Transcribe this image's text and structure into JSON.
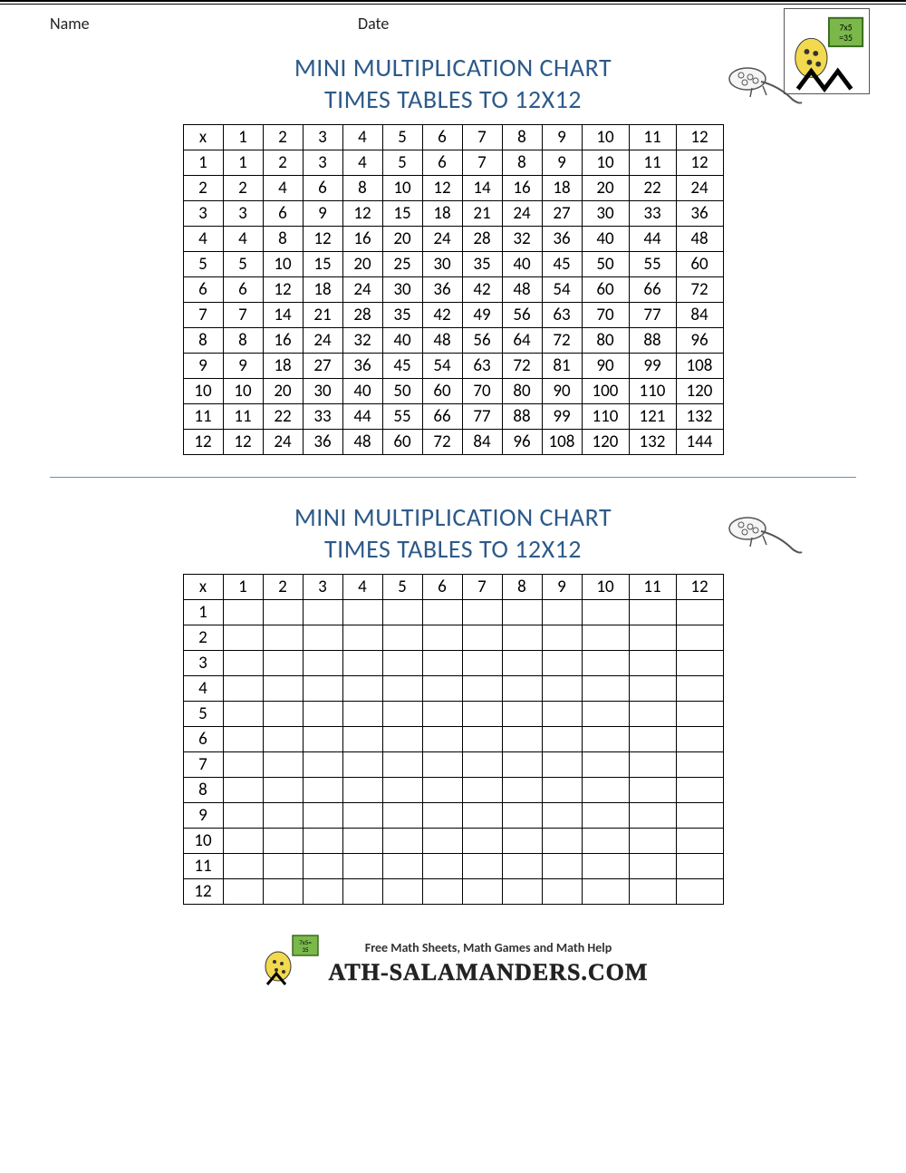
{
  "labels": {
    "name": "Name",
    "date": "Date"
  },
  "title": {
    "line1": "MINI MULTIPLICATION CHART",
    "line2": "TIMES TABLES TO 12X12",
    "color": "#2d5a8a",
    "fontsize": 28
  },
  "chart": {
    "size": 12,
    "corner": "x",
    "headers": [
      1,
      2,
      3,
      4,
      5,
      6,
      7,
      8,
      9,
      10,
      11,
      12
    ],
    "filled_rows": [
      [
        1,
        2,
        3,
        4,
        5,
        6,
        7,
        8,
        9,
        10,
        11,
        12
      ],
      [
        2,
        4,
        6,
        8,
        10,
        12,
        14,
        16,
        18,
        20,
        22,
        24
      ],
      [
        3,
        6,
        9,
        12,
        15,
        18,
        21,
        24,
        27,
        30,
        33,
        36
      ],
      [
        4,
        8,
        12,
        16,
        20,
        24,
        28,
        32,
        36,
        40,
        44,
        48
      ],
      [
        5,
        10,
        15,
        20,
        25,
        30,
        35,
        40,
        45,
        50,
        55,
        60
      ],
      [
        6,
        12,
        18,
        24,
        30,
        36,
        42,
        48,
        54,
        60,
        66,
        72
      ],
      [
        7,
        14,
        21,
        28,
        35,
        42,
        49,
        56,
        63,
        70,
        77,
        84
      ],
      [
        8,
        16,
        24,
        32,
        40,
        48,
        56,
        64,
        72,
        80,
        88,
        96
      ],
      [
        9,
        18,
        27,
        36,
        45,
        54,
        63,
        72,
        81,
        90,
        99,
        108
      ],
      [
        10,
        20,
        30,
        40,
        50,
        60,
        70,
        80,
        90,
        100,
        110,
        120
      ],
      [
        11,
        22,
        33,
        44,
        55,
        66,
        77,
        88,
        99,
        110,
        121,
        132
      ],
      [
        12,
        24,
        36,
        48,
        60,
        72,
        84,
        96,
        108,
        120,
        132,
        144
      ]
    ],
    "cell_border": "#000000",
    "cell_fontsize": 19,
    "col_widths_narrow": 44,
    "col_widths_wide": 52
  },
  "divider_color": "#6a8fb5",
  "footer": {
    "tagline": "Free Math Sheets, Math Games and Math Help",
    "brand": "ATH-SALAMANDERS.COM"
  },
  "logo": {
    "board_text1": "7x5",
    "board_text2": "=35"
  }
}
